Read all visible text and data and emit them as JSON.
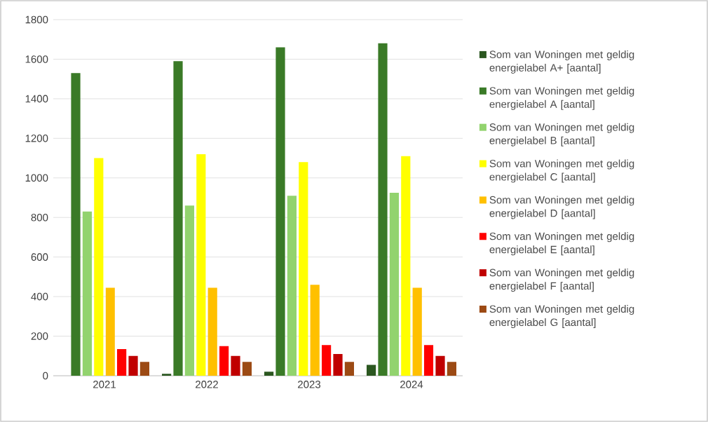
{
  "chart_data": {
    "type": "bar",
    "categories": [
      "2021",
      "2022",
      "2023",
      "2024"
    ],
    "series": [
      {
        "name": "Som van Woningen met geldig energielabel A+ [aantal]",
        "color": "#2b5720",
        "values": [
          0,
          10,
          20,
          55
        ]
      },
      {
        "name": "Som van Woningen met geldig energielabel A [aantal]",
        "color": "#3a7a27",
        "values": [
          1530,
          1590,
          1660,
          1680
        ]
      },
      {
        "name": "Som van Woningen met geldig energielabel B [aantal]",
        "color": "#92d36e",
        "values": [
          830,
          860,
          910,
          925
        ]
      },
      {
        "name": "Som van Woningen met geldig energielabel C [aantal]",
        "color": "#ffff00",
        "values": [
          1100,
          1120,
          1080,
          1110
        ]
      },
      {
        "name": "Som van Woningen met geldig energielabel D [aantal]",
        "color": "#ffc000",
        "values": [
          445,
          445,
          460,
          445
        ]
      },
      {
        "name": "Som van Woningen met geldig energielabel E [aantal]",
        "color": "#ff0000",
        "values": [
          135,
          150,
          155,
          155
        ]
      },
      {
        "name": "Som van Woningen met geldig energielabel F [aantal]",
        "color": "#c00000",
        "values": [
          100,
          100,
          110,
          100
        ]
      },
      {
        "name": "Som van Woningen met geldig energielabel G [aantal]",
        "color": "#9c4a14",
        "values": [
          70,
          70,
          70,
          70
        ]
      }
    ],
    "ylim": [
      0,
      1800
    ],
    "yticks": [
      0,
      200,
      400,
      600,
      800,
      1000,
      1200,
      1400,
      1600,
      1800
    ],
    "grid": "y",
    "legend": "right"
  }
}
